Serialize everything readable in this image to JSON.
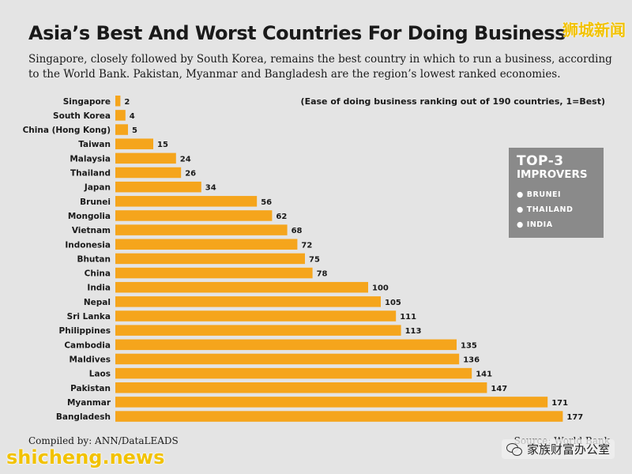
{
  "title": "Asia’s Best And Worst Countries For Doing Business",
  "subtitle": "Singapore, closely followed by South Korea, remains the best country in which to run a business, according to the World Bank. Pakistan, Myanmar and Bangladesh are the region’s lowest ranked economies.",
  "note": "(Ease of doing business ranking out of 190 countries, 1=Best)",
  "improvers": {
    "title": "TOP-3",
    "subtitle": "IMPROVERS",
    "items": [
      "BRUNEI",
      "THAILAND",
      "INDIA"
    ],
    "bullet": "●"
  },
  "footer": {
    "compiled": "Compiled by: ANN/DataLEADS",
    "source": "Source: World Bank"
  },
  "watermarks": {
    "top_right": "狮城新闻",
    "bottom_left": "shicheng.news",
    "bottom_right": "家族财富办公室"
  },
  "colors": {
    "bar": "#f5a51c",
    "background": "#e4e4e4",
    "panel": "#8a8a8a"
  },
  "chart_data": {
    "type": "bar",
    "orientation": "horizontal",
    "categories": [
      "Singapore",
      "South Korea",
      "China (Hong Kong)",
      "Taiwan",
      "Malaysia",
      "Thailand",
      "Japan",
      "Brunei",
      "Mongolia",
      "Vietnam",
      "Indonesia",
      "Bhutan",
      "China",
      "India",
      "Nepal",
      "Sri Lanka",
      "Philippines",
      "Cambodia",
      "Maldives",
      "Laos",
      "Pakistan",
      "Myanmar",
      "Bangladesh"
    ],
    "values": [
      2,
      4,
      5,
      15,
      24,
      26,
      34,
      56,
      62,
      68,
      72,
      75,
      78,
      100,
      105,
      111,
      113,
      135,
      136,
      141,
      147,
      171,
      177
    ],
    "title": "Asia’s Best And Worst Countries For Doing Business",
    "xlabel": "",
    "ylabel": "",
    "xlim": [
      0,
      190
    ],
    "grid": false,
    "legend": false
  }
}
